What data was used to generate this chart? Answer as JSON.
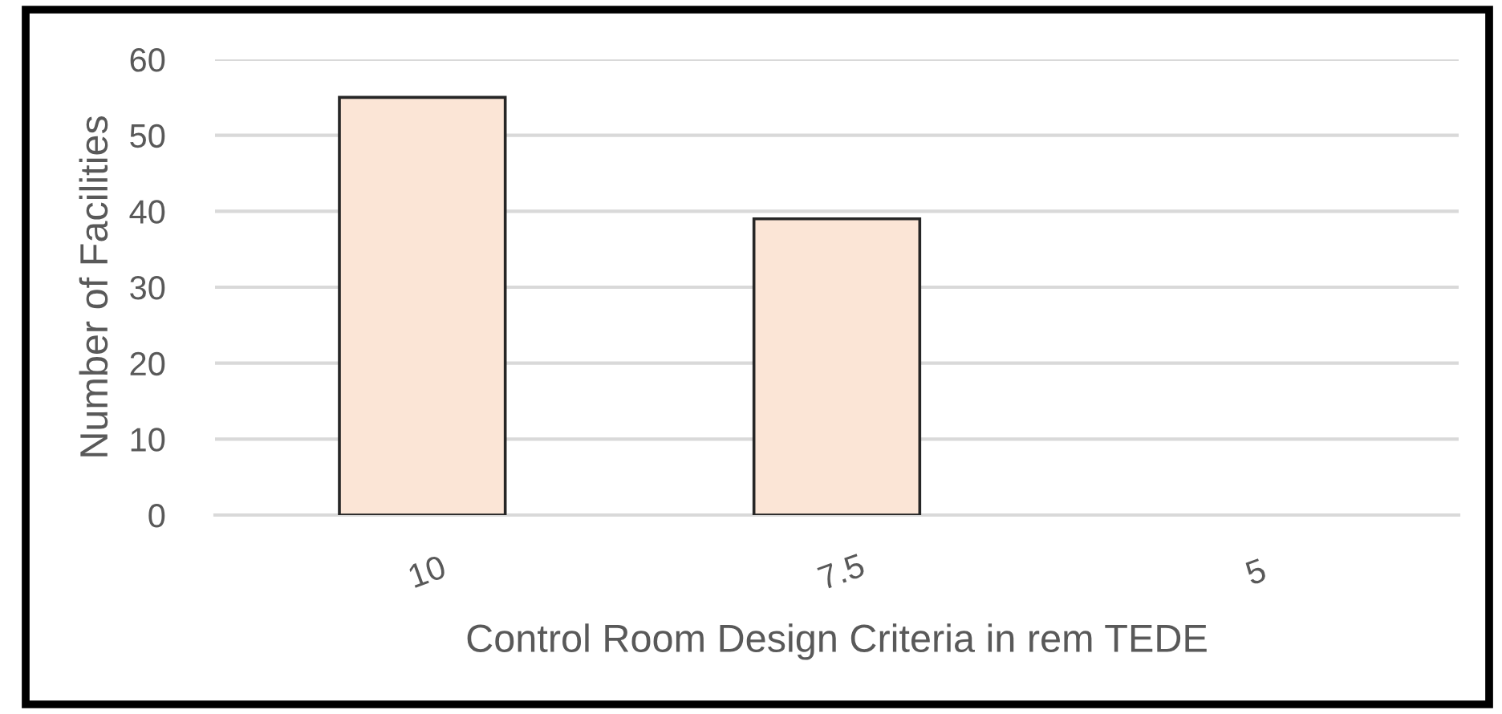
{
  "chart_data": {
    "type": "bar",
    "xlabel": "Control Room Design Criteria in rem TEDE",
    "ylabel": "Number of Facilities",
    "categories": [
      "10",
      "7.5",
      "5"
    ],
    "values": [
      55,
      39,
      0
    ],
    "color": "#fbe5d6",
    "ylim": [
      0,
      60
    ],
    "yticks": [
      0,
      10,
      20,
      30,
      40,
      50,
      60
    ],
    "grid": "y",
    "legend": false
  }
}
